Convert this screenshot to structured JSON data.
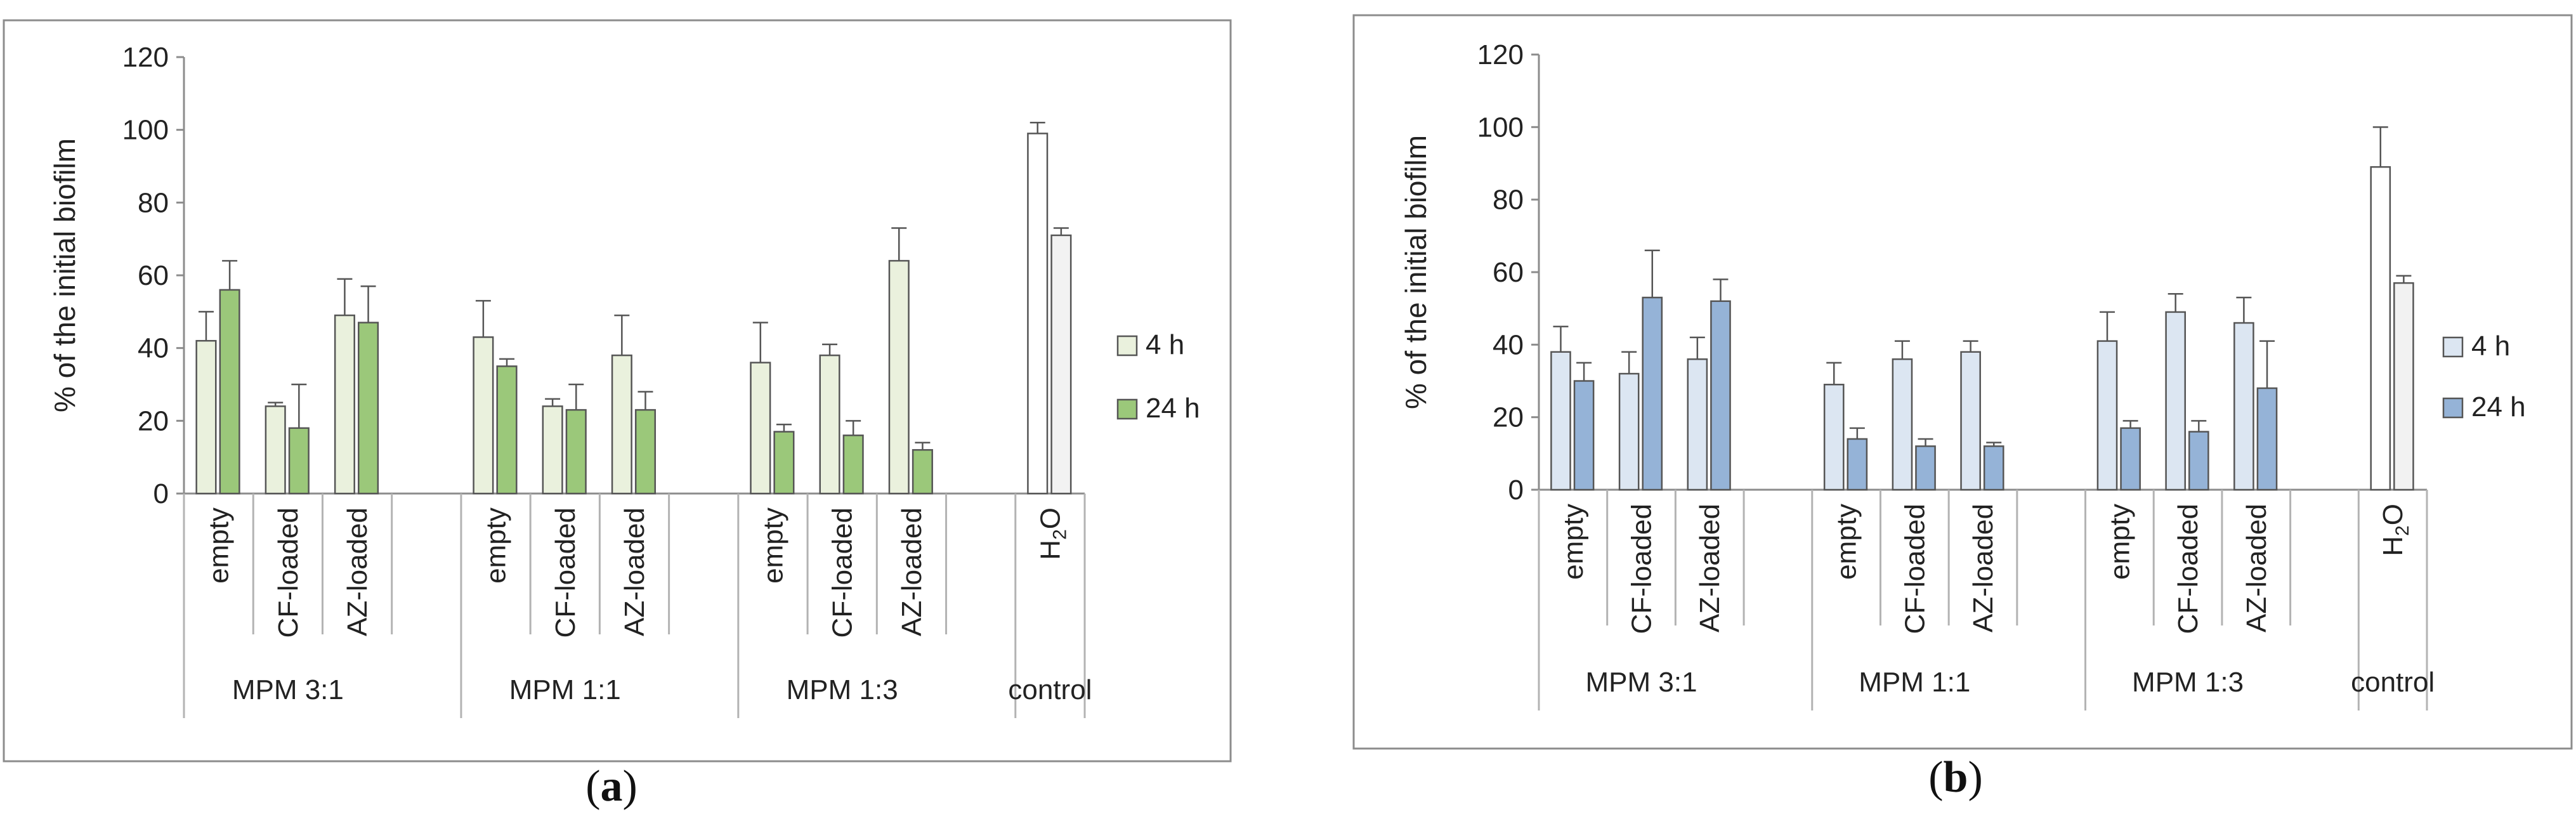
{
  "chart_data": [
    {
      "panel": "a",
      "type": "bar",
      "caption_letter": "a",
      "ylabel": "% of the initial biofilm",
      "ylim": [
        0,
        120
      ],
      "yticks": [
        "0",
        "20",
        "40",
        "60",
        "80",
        "100",
        "120"
      ],
      "groups": [
        {
          "label": "MPM 3:1",
          "categories": [
            "empty",
            "CF-loaded",
            "AZ-loaded"
          ]
        },
        {
          "label": "MPM 1:1",
          "categories": [
            "empty",
            "CF-loaded",
            "AZ-loaded"
          ]
        },
        {
          "label": "MPM 1:3",
          "categories": [
            "empty",
            "CF-loaded",
            "AZ-loaded"
          ]
        },
        {
          "label": "control",
          "categories": [
            "H2O"
          ]
        }
      ],
      "series": [
        {
          "name": "4 h",
          "color": "#eaf1dd",
          "control_color": "#ffffff",
          "values": [
            42,
            24,
            49,
            43,
            24,
            38,
            36,
            38,
            64,
            99
          ],
          "errors": [
            8,
            1,
            10,
            10,
            2,
            11,
            11,
            3,
            9,
            3
          ]
        },
        {
          "name": "24 h",
          "color": "#9bc87a",
          "control_color": "#f2f2f2",
          "values": [
            56,
            18,
            47,
            35,
            23,
            23,
            17,
            16,
            12,
            71
          ],
          "errors": [
            8,
            12,
            10,
            2,
            7,
            5,
            2,
            4,
            2,
            2
          ]
        }
      ]
    },
    {
      "panel": "b",
      "type": "bar",
      "caption_letter": "b",
      "ylabel": "% of the initial biofilm",
      "ylim": [
        0,
        120
      ],
      "yticks": [
        "0",
        "20",
        "40",
        "60",
        "80",
        "100",
        "120"
      ],
      "groups": [
        {
          "label": "MPM 3:1",
          "categories": [
            "empty",
            "CF-loaded",
            "AZ-loaded"
          ]
        },
        {
          "label": "MPM 1:1",
          "categories": [
            "empty",
            "CF-loaded",
            "AZ-loaded"
          ]
        },
        {
          "label": "MPM 1:3",
          "categories": [
            "empty",
            "CF-loaded",
            "AZ-loaded"
          ]
        },
        {
          "label": "control",
          "categories": [
            "H2O"
          ]
        }
      ],
      "series": [
        {
          "name": "4 h",
          "color": "#dce6f2",
          "control_color": "#ffffff",
          "values": [
            38,
            32,
            36,
            29,
            36,
            38,
            41,
            49,
            46,
            89
          ],
          "errors": [
            7,
            6,
            6,
            6,
            5,
            3,
            8,
            5,
            7,
            11
          ]
        },
        {
          "name": "24 h",
          "color": "#95b3d7",
          "control_color": "#f2f2f2",
          "values": [
            30,
            53,
            52,
            14,
            12,
            12,
            17,
            16,
            28,
            57
          ],
          "errors": [
            5,
            13,
            6,
            3,
            2,
            1,
            2,
            3,
            13,
            2
          ]
        }
      ]
    }
  ]
}
